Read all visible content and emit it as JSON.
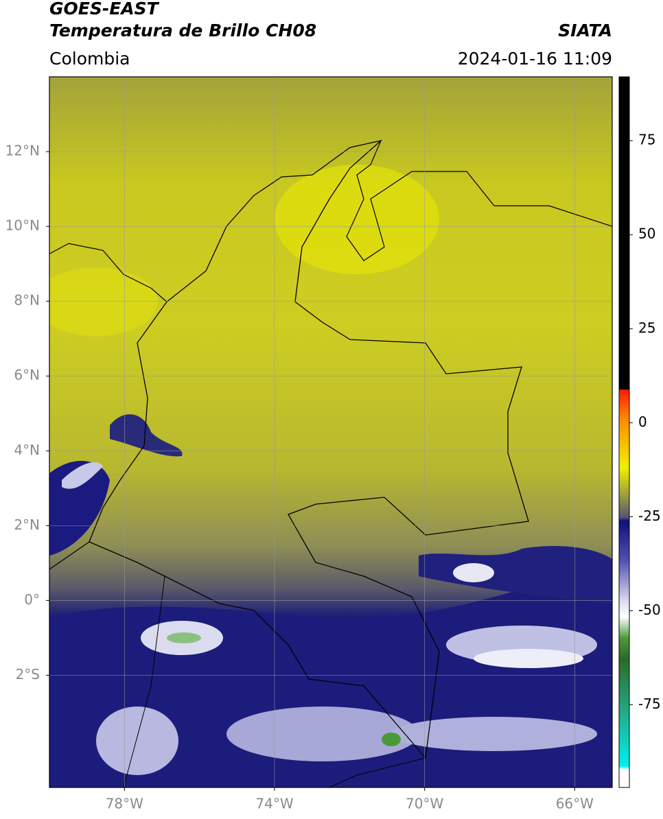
{
  "header": {
    "title": "GOES-EAST",
    "subtitle": "Temperatura de Brillo CH08",
    "source": "SIATA",
    "region": "Colombia",
    "timestamp": "2024-01-16 11:09"
  },
  "map": {
    "lon_range": [
      -80,
      -65
    ],
    "lat_range": [
      -5,
      14
    ],
    "lon_ticks": [
      {
        "value": -78,
        "label": "78°W"
      },
      {
        "value": -74,
        "label": "74°W"
      },
      {
        "value": -70,
        "label": "70°W"
      },
      {
        "value": -66,
        "label": "66°W"
      }
    ],
    "lat_ticks": [
      {
        "value": 12,
        "label": "12°N"
      },
      {
        "value": 10,
        "label": "10°N"
      },
      {
        "value": 8,
        "label": "8°N"
      },
      {
        "value": 6,
        "label": "6°N"
      },
      {
        "value": 4,
        "label": "4°N"
      },
      {
        "value": 2,
        "label": "2°N"
      },
      {
        "value": 0,
        "label": "0°"
      },
      {
        "value": -2,
        "label": "2°S"
      }
    ],
    "grid": true
  },
  "colorbar": {
    "range": [
      -97,
      92
    ],
    "ticks": [
      75,
      50,
      25,
      0,
      -25,
      -50,
      -75
    ]
  }
}
